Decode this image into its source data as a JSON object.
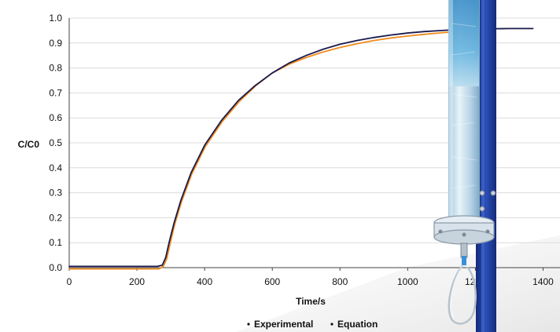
{
  "chart_data": {
    "type": "line",
    "title": "",
    "xlabel": "Time/s",
    "ylabel": "C/C0",
    "xlim": [
      0,
      1450
    ],
    "ylim": [
      0,
      1.0
    ],
    "x_ticks": [
      "0",
      "200",
      "400",
      "600",
      "800",
      "1000",
      "1200",
      "1400"
    ],
    "y_ticks": [
      "0.0",
      "0.1",
      "0.2",
      "0.3",
      "0.4",
      "0.5",
      "0.6",
      "0.7",
      "0.8",
      "0.9",
      "1.0"
    ],
    "grid": true,
    "legend_position": "bottom-center",
    "series": [
      {
        "name": "Experimental",
        "color": "#1a1a4e",
        "x": [
          0,
          260,
          275,
          285,
          295,
          310,
          330,
          360,
          400,
          450,
          500,
          550,
          600,
          650,
          700,
          750,
          800,
          850,
          900,
          950,
          1000,
          1050,
          1100,
          1150,
          1200,
          1250,
          1300,
          1370
        ],
        "y": [
          0.005,
          0.005,
          0.01,
          0.04,
          0.1,
          0.18,
          0.27,
          0.38,
          0.49,
          0.59,
          0.67,
          0.73,
          0.78,
          0.82,
          0.85,
          0.875,
          0.895,
          0.91,
          0.922,
          0.932,
          0.94,
          0.946,
          0.95,
          0.954,
          0.956,
          0.957,
          0.958,
          0.958
        ]
      },
      {
        "name": "Equation",
        "color": "#f08a1c",
        "x": [
          0,
          265,
          278,
          288,
          298,
          312,
          332,
          362,
          402,
          452,
          502,
          552,
          600,
          650,
          700,
          750,
          800,
          850,
          900,
          950,
          1000,
          1050,
          1100,
          1150,
          1200,
          1250
        ],
        "y": [
          -0.005,
          -0.005,
          0.005,
          0.035,
          0.095,
          0.175,
          0.265,
          0.375,
          0.485,
          0.585,
          0.665,
          0.73,
          0.78,
          0.815,
          0.842,
          0.864,
          0.882,
          0.897,
          0.91,
          0.92,
          0.928,
          0.935,
          0.941,
          0.946,
          0.95,
          0.953
        ]
      }
    ]
  },
  "colors": {
    "column_glass": "#bcd6e6",
    "column_top": "#4aa8dc",
    "frame": "#1f3d96",
    "gridline": "#dcdcdc"
  },
  "photo": {
    "icon": "adsorption-column-photo"
  }
}
